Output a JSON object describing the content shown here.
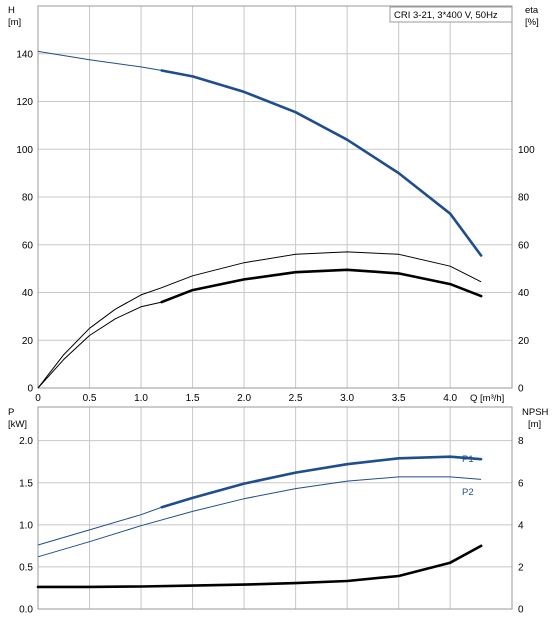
{
  "chart_data": [
    {
      "type": "line",
      "title": "CRI 3-21, 3*400 V, 50Hz",
      "xlabel": "Q [m³/h]",
      "ylabel_left": "H",
      "ylabel_left_unit": "[m]",
      "ylabel_right": "eta",
      "ylabel_right_unit": "[%]",
      "xlim": [
        0,
        4.6
      ],
      "ylim_left": [
        0,
        160
      ],
      "ylim_right": [
        0,
        160
      ],
      "x_ticks": [
        "0",
        "0.5",
        "1.0",
        "1.5",
        "2.0",
        "2.5",
        "3.0",
        "3.5",
        "4.0"
      ],
      "x_tick_values": [
        0,
        0.5,
        1.0,
        1.5,
        2.0,
        2.5,
        3.0,
        3.5,
        4.0
      ],
      "y_ticks_left": [
        "0",
        "20",
        "40",
        "60",
        "80",
        "100",
        "120",
        "140"
      ],
      "y_tick_values_left": [
        0,
        20,
        40,
        60,
        80,
        100,
        120,
        140
      ],
      "y_ticks_right": [
        "0",
        "20",
        "40",
        "60",
        "80",
        "100"
      ],
      "y_tick_values_right": [
        0,
        20,
        40,
        60,
        80,
        100
      ],
      "grid": true,
      "series": [
        {
          "axis": "left",
          "color": "#1f4e8c",
          "x": [
            0,
            0.5,
            1.0,
            1.2,
            1.5,
            2.0,
            2.5,
            3.0,
            3.5,
            4.0,
            4.3
          ],
          "y": [
            141,
            137.5,
            134.5,
            133,
            130.5,
            124,
            115.5,
            104,
            90,
            73,
            55.5
          ],
          "bold_from": 1.2
        },
        {
          "axis": "right",
          "color": "#000000",
          "x": [
            0,
            0.25,
            0.5,
            0.75,
            1.0,
            1.2,
            1.5,
            2.0,
            2.5,
            3.0,
            3.5,
            4.0,
            4.3
          ],
          "y": [
            0,
            14,
            25,
            33,
            39,
            42,
            47,
            52.5,
            56,
            57,
            56,
            51,
            44.5
          ],
          "bold_from": null
        },
        {
          "axis": "right",
          "color": "#000000",
          "x": [
            0,
            0.25,
            0.5,
            0.75,
            1.0,
            1.2,
            1.5,
            2.0,
            2.5,
            3.0,
            3.5,
            4.0,
            4.3
          ],
          "y": [
            0,
            12,
            22,
            29,
            34,
            36,
            41,
            45.5,
            48.5,
            49.5,
            48,
            43.5,
            38.5
          ],
          "bold_from": 1.2
        }
      ]
    },
    {
      "type": "line",
      "xlabel": "",
      "ylabel_left": "P",
      "ylabel_left_unit": "[kW]",
      "ylabel_right": "NPSH",
      "ylabel_right_unit": "[m]",
      "xlim": [
        0,
        4.6
      ],
      "ylim_left": [
        0,
        2.4
      ],
      "ylim_right": [
        0,
        9.6
      ],
      "y_ticks_left": [
        "0.0",
        "0.5",
        "1.0",
        "1.5",
        "2.0"
      ],
      "y_tick_values_left": [
        0,
        0.5,
        1.0,
        1.5,
        2.0
      ],
      "y_ticks_right": [
        "0",
        "2",
        "4",
        "6",
        "8"
      ],
      "y_tick_values_right": [
        0,
        2,
        4,
        6,
        8
      ],
      "grid": true,
      "series": [
        {
          "name": "P1",
          "axis": "left",
          "color": "#1f4e8c",
          "x": [
            0,
            0.5,
            1.0,
            1.2,
            1.5,
            2.0,
            2.5,
            3.0,
            3.5,
            4.0,
            4.3
          ],
          "y": [
            0.76,
            0.94,
            1.12,
            1.21,
            1.32,
            1.49,
            1.62,
            1.72,
            1.79,
            1.81,
            1.78
          ],
          "bold_from": 1.2
        },
        {
          "name": "P2",
          "axis": "left",
          "color": "#1f4e8c",
          "x": [
            0,
            0.5,
            1.0,
            1.5,
            2.0,
            2.5,
            3.0,
            3.5,
            4.0,
            4.3
          ],
          "y": [
            0.62,
            0.8,
            0.99,
            1.16,
            1.31,
            1.43,
            1.52,
            1.57,
            1.57,
            1.54
          ],
          "bold_from": null
        },
        {
          "axis": "right",
          "color": "#000000",
          "x": [
            0,
            0.5,
            1.0,
            1.5,
            2.0,
            2.5,
            3.0,
            3.5,
            4.0,
            4.3
          ],
          "y": [
            1.05,
            1.05,
            1.07,
            1.11,
            1.16,
            1.23,
            1.33,
            1.57,
            2.2,
            3.0
          ],
          "bold_from": 0
        }
      ]
    }
  ]
}
